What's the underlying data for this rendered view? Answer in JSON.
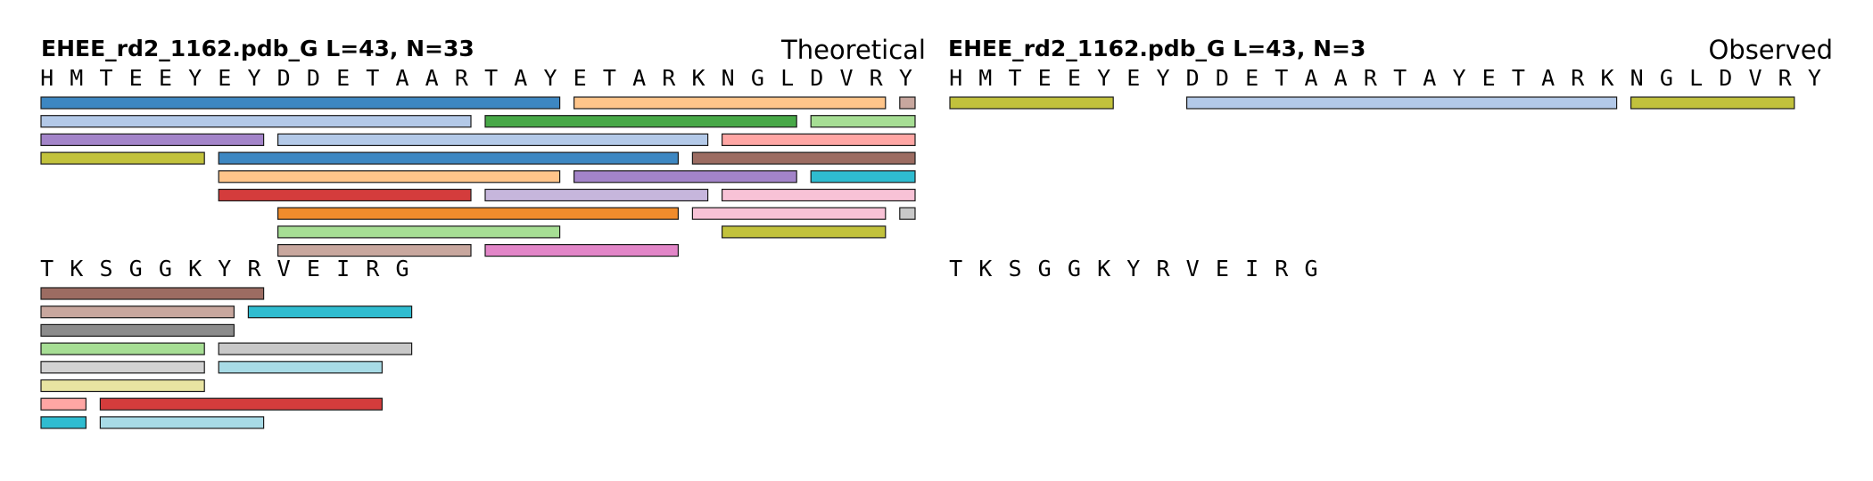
{
  "panels": [
    {
      "title": "EHEE_rd2_1162.pdb_G  L=43, N=33",
      "label": "Theoretical",
      "rows": [
        {
          "sequence": "HMTEEYEYDDETAARTAYETARKNGLDVRY",
          "start": 1,
          "peptides": [
            {
              "start": 1,
              "end": 18,
              "color": "#3d87c2"
            },
            {
              "start": 19,
              "end": 29,
              "color": "#ffc58a"
            },
            {
              "start": 30,
              "end": 30,
              "color": "#c8a79e"
            },
            {
              "start": 1,
              "end": 15,
              "color": "#b3c9e8"
            },
            {
              "start": 16,
              "end": 26,
              "color": "#47a847"
            },
            {
              "start": 27,
              "end": 30,
              "color": "#a6de94"
            },
            {
              "start": 1,
              "end": 8,
              "color": "#a384c9"
            },
            {
              "start": 9,
              "end": 23,
              "color": "#b3c9e8"
            },
            {
              "start": 24,
              "end": 30,
              "color": "#ffa6a4"
            },
            {
              "start": 1,
              "end": 6,
              "color": "#c2c23c"
            },
            {
              "start": 7,
              "end": 22,
              "color": "#3d87c2"
            },
            {
              "start": 23,
              "end": 30,
              "color": "#9c6c62"
            },
            {
              "start": 7,
              "end": 18,
              "color": "#ffc58a"
            },
            {
              "start": 19,
              "end": 26,
              "color": "#a384c9"
            },
            {
              "start": 27,
              "end": 30,
              "color": "#2fbcd0"
            },
            {
              "start": 7,
              "end": 15,
              "color": "#d43c3c"
            },
            {
              "start": 16,
              "end": 23,
              "color": "#c6b6dc"
            },
            {
              "start": 24,
              "end": 30,
              "color": "#f8c2d6"
            },
            {
              "start": 9,
              "end": 22,
              "color": "#f08c2c"
            },
            {
              "start": 23,
              "end": 29,
              "color": "#f8c2d6"
            },
            {
              "start": 30,
              "end": 30,
              "color": "#c8c8c8"
            },
            {
              "start": 9,
              "end": 18,
              "color": "#a6de94"
            },
            {
              "start": 24,
              "end": 29,
              "color": "#c2c23c"
            },
            {
              "start": 9,
              "end": 15,
              "color": "#c8a79e"
            },
            {
              "start": 16,
              "end": 22,
              "color": "#e286c8"
            }
          ]
        },
        {
          "sequence": "TKSGGKYRVEIRG",
          "start": 31,
          "peptides": [
            {
              "start": 31,
              "end": 38,
              "color": "#9c6c62"
            },
            {
              "start": 31,
              "end": 37,
              "color": "#c8a79e"
            },
            {
              "start": 38,
              "end": 43,
              "color": "#2fbcd0"
            },
            {
              "start": 31,
              "end": 37,
              "color": "#8c8c8c"
            },
            {
              "start": 31,
              "end": 36,
              "color": "#a6de94"
            },
            {
              "start": 37,
              "end": 43,
              "color": "#c8c8c8"
            },
            {
              "start": 31,
              "end": 36,
              "color": "#d2d2d2"
            },
            {
              "start": 37,
              "end": 42,
              "color": "#a8dbe6"
            },
            {
              "start": 31,
              "end": 36,
              "color": "#e8e4a2"
            },
            {
              "start": 31,
              "end": 32,
              "color": "#ffa6a4"
            },
            {
              "start": 33,
              "end": 42,
              "color": "#d43c3c"
            },
            {
              "start": 31,
              "end": 32,
              "color": "#2fbcd0"
            },
            {
              "start": 33,
              "end": 38,
              "color": "#a8dbe6"
            }
          ]
        }
      ]
    },
    {
      "title": "EHEE_rd2_1162.pdb_G  L=43, N=3",
      "label": "Observed",
      "rows": [
        {
          "sequence": "HMTEEYEYDDETAARTAYETARKNGLDVRY",
          "start": 1,
          "peptides": [
            {
              "start": 1,
              "end": 6,
              "color": "#c2c23c"
            },
            {
              "start": 9,
              "end": 23,
              "color": "#b3c9e8"
            },
            {
              "start": 24,
              "end": 29,
              "color": "#c2c23c"
            }
          ]
        },
        {
          "sequence": "TKSGGKYRVEIRG",
          "start": 31,
          "peptides": []
        }
      ]
    }
  ]
}
